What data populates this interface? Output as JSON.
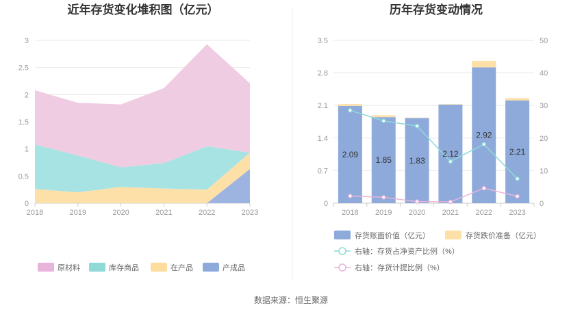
{
  "footer": {
    "source": "数据来源：恒生聚源"
  },
  "chart_data": [
    {
      "type": "area",
      "stacked": true,
      "title": "近年存货变化堆积图（亿元）",
      "categories": [
        "2018",
        "2019",
        "2020",
        "2021",
        "2022",
        "2023"
      ],
      "yticks": [
        "0",
        "0.5",
        "1",
        "1.5",
        "2",
        "2.5",
        "3"
      ],
      "ylim": [
        0,
        3
      ],
      "grid": true,
      "legend_position": "bottom",
      "series": [
        {
          "name": "产成品",
          "color": "#9db3e0",
          "values": [
            0,
            0,
            0,
            0,
            0,
            0.63
          ]
        },
        {
          "name": "在产品",
          "color": "#fde0a8",
          "values": [
            0.26,
            0.2,
            0.3,
            0.27,
            0.25,
            0.3
          ]
        },
        {
          "name": "库存商品",
          "color": "#a8e3e3",
          "values": [
            0.82,
            0.68,
            0.36,
            0.47,
            0.8,
            0
          ]
        },
        {
          "name": "原材料",
          "color": "#f0cce3",
          "values": [
            1.0,
            0.97,
            1.16,
            1.38,
            1.88,
            1.28
          ]
        }
      ],
      "legend_colors": [
        "#e8b4da",
        "#8fd9d9",
        "#fddc9e",
        "#8eaadb"
      ]
    },
    {
      "type": "bar",
      "stacked": true,
      "title": "历年存货变动情况",
      "categories": [
        "2018",
        "2019",
        "2020",
        "2021",
        "2022",
        "2023"
      ],
      "yticks_left": [
        "0",
        "0.7",
        "1.4",
        "2.1",
        "2.8",
        "3.5"
      ],
      "ylim_left": [
        0,
        3.5
      ],
      "yticks_right": [
        "0",
        "10",
        "20",
        "30",
        "40",
        "50"
      ],
      "ylim_right": [
        0,
        50
      ],
      "legend_position": "bottom",
      "bars": [
        {
          "name": "存货账面价值（亿元）",
          "color": "#8eaadb",
          "values": [
            2.09,
            1.85,
            1.83,
            2.12,
            2.92,
            2.21
          ],
          "labels": [
            "2.09",
            "1.85",
            "1.83",
            "2.12",
            "2.92",
            "2.21"
          ]
        },
        {
          "name": "存货跌价准备（亿元）",
          "color": "#fde0a8",
          "values": [
            0.04,
            0.04,
            0.01,
            0.01,
            0.14,
            0.05
          ]
        }
      ],
      "lines": [
        {
          "name": "右轴：存货占净资产比例（%）",
          "color": "#8fd9d9",
          "values": [
            28.5,
            25.3,
            23.7,
            12.8,
            18.1,
            7.5
          ]
        },
        {
          "name": "右轴：存货计提比例（%）",
          "color": "#e8b4da",
          "values": [
            2.2,
            1.8,
            0.5,
            0.4,
            4.6,
            2.1
          ]
        }
      ]
    }
  ]
}
